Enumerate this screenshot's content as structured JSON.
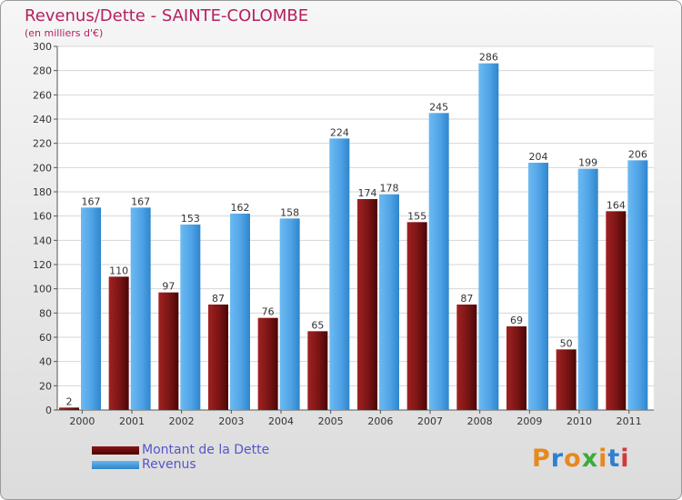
{
  "chart_data": {
    "type": "bar",
    "title": "Revenus/Dette - SAINTE-COLOMBE",
    "subtitle": "(en milliers d'€)",
    "categories": [
      "2000",
      "2001",
      "2002",
      "2003",
      "2004",
      "2005",
      "2006",
      "2007",
      "2008",
      "2009",
      "2010",
      "2011"
    ],
    "series": [
      {
        "name": "Montant de la Dette",
        "color": "#6b1010",
        "values": [
          2,
          110,
          97,
          87,
          76,
          65,
          174,
          155,
          87,
          69,
          50,
          164
        ]
      },
      {
        "name": "Revenus",
        "color": "#4fa3e6",
        "values": [
          167,
          167,
          153,
          162,
          158,
          224,
          178,
          245,
          286,
          204,
          199,
          206
        ]
      }
    ],
    "ylim": [
      0,
      300
    ],
    "yticks": [
      0,
      20,
      40,
      60,
      80,
      100,
      120,
      140,
      160,
      180,
      200,
      220,
      240,
      260,
      280,
      300
    ],
    "grid": true,
    "xlabel": "",
    "ylabel": ""
  },
  "logo": {
    "text": "Proxiti",
    "letters": [
      "P",
      "r",
      "o",
      "x",
      "i",
      "t",
      "i"
    ],
    "colors": [
      "#e8891c",
      "#2f7fd0",
      "#e8891c",
      "#3cab3c",
      "#e8891c",
      "#2f7fd0",
      "#d23a3a"
    ]
  }
}
